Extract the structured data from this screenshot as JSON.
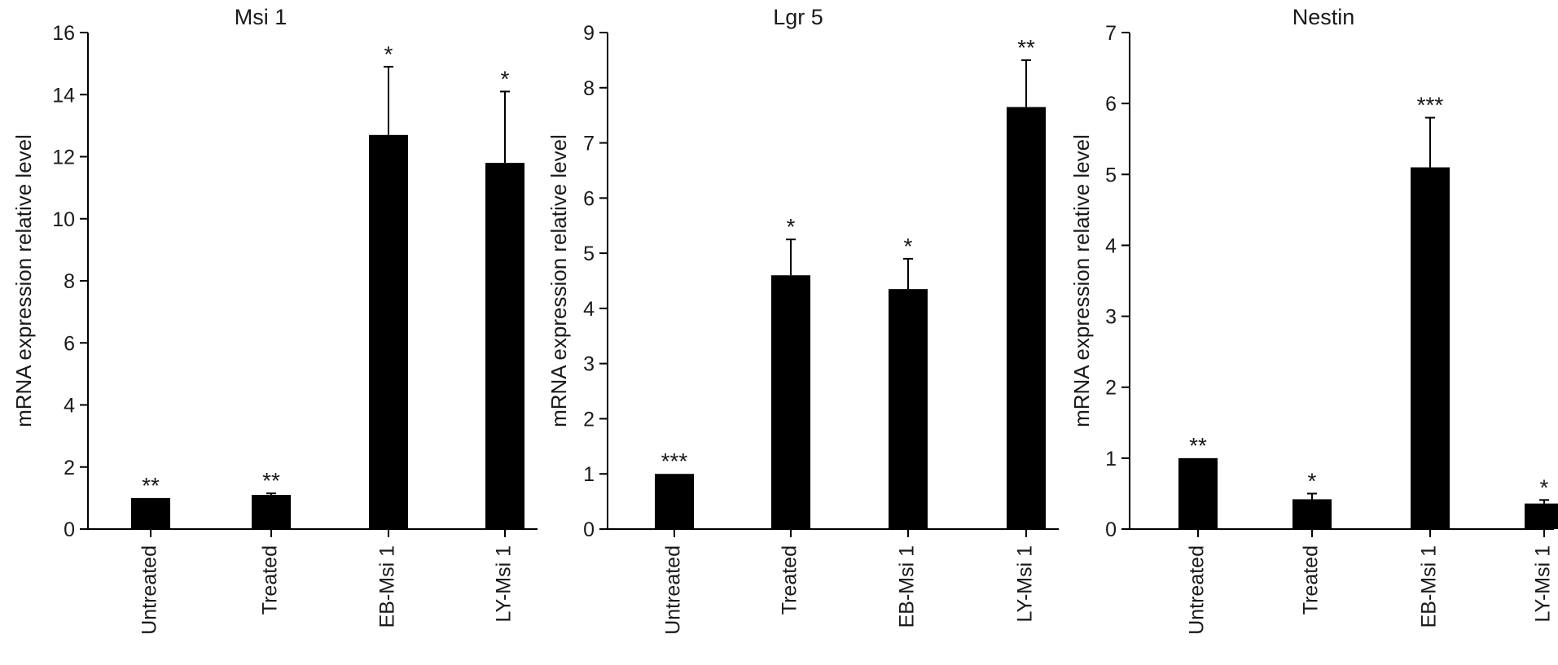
{
  "chart_data": [
    {
      "type": "bar",
      "title": "Msi 1",
      "ylabel": "mRNA expression relative level",
      "xlabel": "",
      "categories": [
        "Untreated",
        "Treated",
        "EB-Msi 1",
        "LY-Msi 1"
      ],
      "values": [
        1.0,
        1.1,
        12.7,
        11.8
      ],
      "errors": [
        0,
        0.05,
        2.2,
        2.3
      ],
      "significance": [
        "**",
        "**",
        "*",
        "*"
      ],
      "ylim": [
        0,
        16
      ],
      "yticks": [
        0,
        2,
        4,
        6,
        8,
        10,
        12,
        14,
        16
      ],
      "color": "#000000",
      "grid": false
    },
    {
      "type": "bar",
      "title": "Lgr 5",
      "ylabel": "mRNA expression relative level",
      "xlabel": "",
      "categories": [
        "Untreated",
        "Treated",
        "EB-Msi 1",
        "LY-Msi 1"
      ],
      "values": [
        1.0,
        4.6,
        4.35,
        7.65
      ],
      "errors": [
        0,
        0.65,
        0.55,
        0.85
      ],
      "significance": [
        "***",
        "*",
        "*",
        "**"
      ],
      "ylim": [
        0,
        9
      ],
      "yticks": [
        0,
        1,
        2,
        3,
        4,
        5,
        6,
        7,
        8,
        9
      ],
      "color": "#000000",
      "grid": false
    },
    {
      "type": "bar",
      "title": "Nestin",
      "ylabel": "mRNA expression relative level",
      "xlabel": "",
      "categories": [
        "Untreated",
        "Treated",
        "EB-Msi 1",
        "LY-Msi 1"
      ],
      "values": [
        1.0,
        0.42,
        5.1,
        0.36
      ],
      "errors": [
        0,
        0.08,
        0.7,
        0.05
      ],
      "significance": [
        "**",
        "*",
        "***",
        "*"
      ],
      "ylim": [
        0,
        7
      ],
      "yticks": [
        0,
        1,
        2,
        3,
        4,
        5,
        6,
        7
      ],
      "color": "#000000",
      "grid": false
    }
  ]
}
